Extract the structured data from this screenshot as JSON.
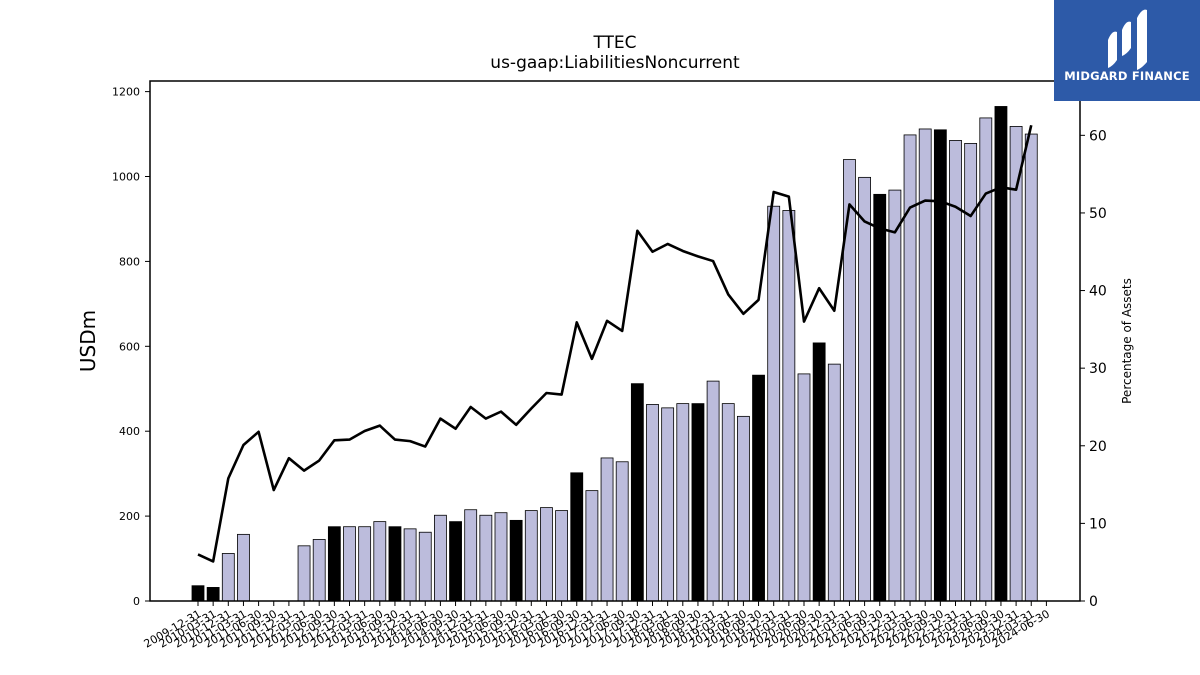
{
  "chart_data": {
    "type": "bar",
    "title": "TTEC",
    "subtitle": "us-gaap:LiabilitiesNoncurrent",
    "ylabel": "USDm",
    "y2label": "Percentage of Assets",
    "ylim": [
      0,
      1225
    ],
    "y2lim": [
      0,
      67
    ],
    "yticks": [
      0,
      200,
      400,
      600,
      800,
      1000,
      1200
    ],
    "y2ticks": [
      0,
      10,
      20,
      30,
      40,
      50,
      60
    ],
    "grid": false,
    "categories": [
      "2009-12-31",
      "2010-03-31",
      "2010-12-31",
      "2011-03-31",
      "2011-06-30",
      "2011-09-30",
      "2011-12-31",
      "2012-03-31",
      "2012-06-30",
      "2012-09-30",
      "2012-12-31",
      "2013-03-31",
      "2013-06-30",
      "2013-09-30",
      "2013-12-31",
      "2014-03-31",
      "2014-06-30",
      "2014-09-30",
      "2014-12-31",
      "2015-03-31",
      "2015-06-30",
      "2015-09-30",
      "2015-12-31",
      "2016-03-31",
      "2016-06-30",
      "2016-09-30",
      "2016-12-31",
      "2017-03-31",
      "2017-06-30",
      "2017-09-30",
      "2017-12-31",
      "2018-03-31",
      "2018-06-30",
      "2018-09-30",
      "2018-12-31",
      "2019-03-31",
      "2019-06-30",
      "2019-09-30",
      "2019-12-31",
      "2020-03-31",
      "2020-06-30",
      "2020-09-30",
      "2020-12-31",
      "2021-03-31",
      "2021-06-30",
      "2021-09-30",
      "2021-12-31",
      "2022-03-31",
      "2022-06-30",
      "2022-09-30",
      "2022-12-31",
      "2023-03-31",
      "2023-06-30",
      "2023-09-30",
      "2023-12-31",
      "2024-03-31",
      "2024-06-30"
    ],
    "series": [
      {
        "kind": "bar",
        "values": [
          36,
          32,
          112,
          157,
          0,
          0,
          0,
          130,
          145,
          175,
          175,
          175,
          187,
          175,
          170,
          162,
          202,
          187,
          215,
          202,
          208,
          190,
          213,
          220,
          213,
          302,
          260,
          337,
          328,
          512,
          463,
          455,
          465,
          465,
          518,
          465,
          435,
          532,
          930,
          920,
          535,
          608,
          558,
          1040,
          998,
          958,
          968,
          1098,
          1112,
          1110,
          1085,
          1078,
          1138,
          1165,
          1118,
          1100,
          null
        ],
        "highlight": [
          true,
          true,
          false,
          false,
          false,
          false,
          false,
          false,
          false,
          true,
          false,
          false,
          false,
          true,
          false,
          false,
          false,
          true,
          false,
          false,
          false,
          true,
          false,
          false,
          false,
          true,
          false,
          false,
          false,
          true,
          false,
          false,
          false,
          true,
          false,
          false,
          false,
          true,
          false,
          false,
          false,
          true,
          false,
          false,
          false,
          true,
          false,
          false,
          false,
          true,
          false,
          false,
          false,
          true,
          false,
          false,
          false
        ]
      },
      {
        "kind": "line",
        "axis": "right",
        "values": [
          6.0,
          5.1,
          15.8,
          20.1,
          21.8,
          14.3,
          18.4,
          16.8,
          18.1,
          20.7,
          20.8,
          21.9,
          22.6,
          20.8,
          20.6,
          19.9,
          23.5,
          22.2,
          25.0,
          23.5,
          24.4,
          22.7,
          24.8,
          26.8,
          26.6,
          35.9,
          31.2,
          36.1,
          34.8,
          47.7,
          45.0,
          46.0,
          45.1,
          44.4,
          43.8,
          39.5,
          37.0,
          38.8,
          52.7,
          52.1,
          36.0,
          40.3,
          37.4,
          51.1,
          48.9,
          48.0,
          47.5,
          50.7,
          51.6,
          51.5,
          50.8,
          49.6,
          52.5,
          53.3,
          53.0,
          61.3,
          null
        ]
      }
    ]
  },
  "logo": {
    "text": "MIDGARD FINANCE",
    "icon": "midgard-logo-icon",
    "bg": "#2d5aa8"
  },
  "colors": {
    "bar": "#bcbcdc",
    "bar_highlight": "#000000",
    "line": "#000000"
  }
}
